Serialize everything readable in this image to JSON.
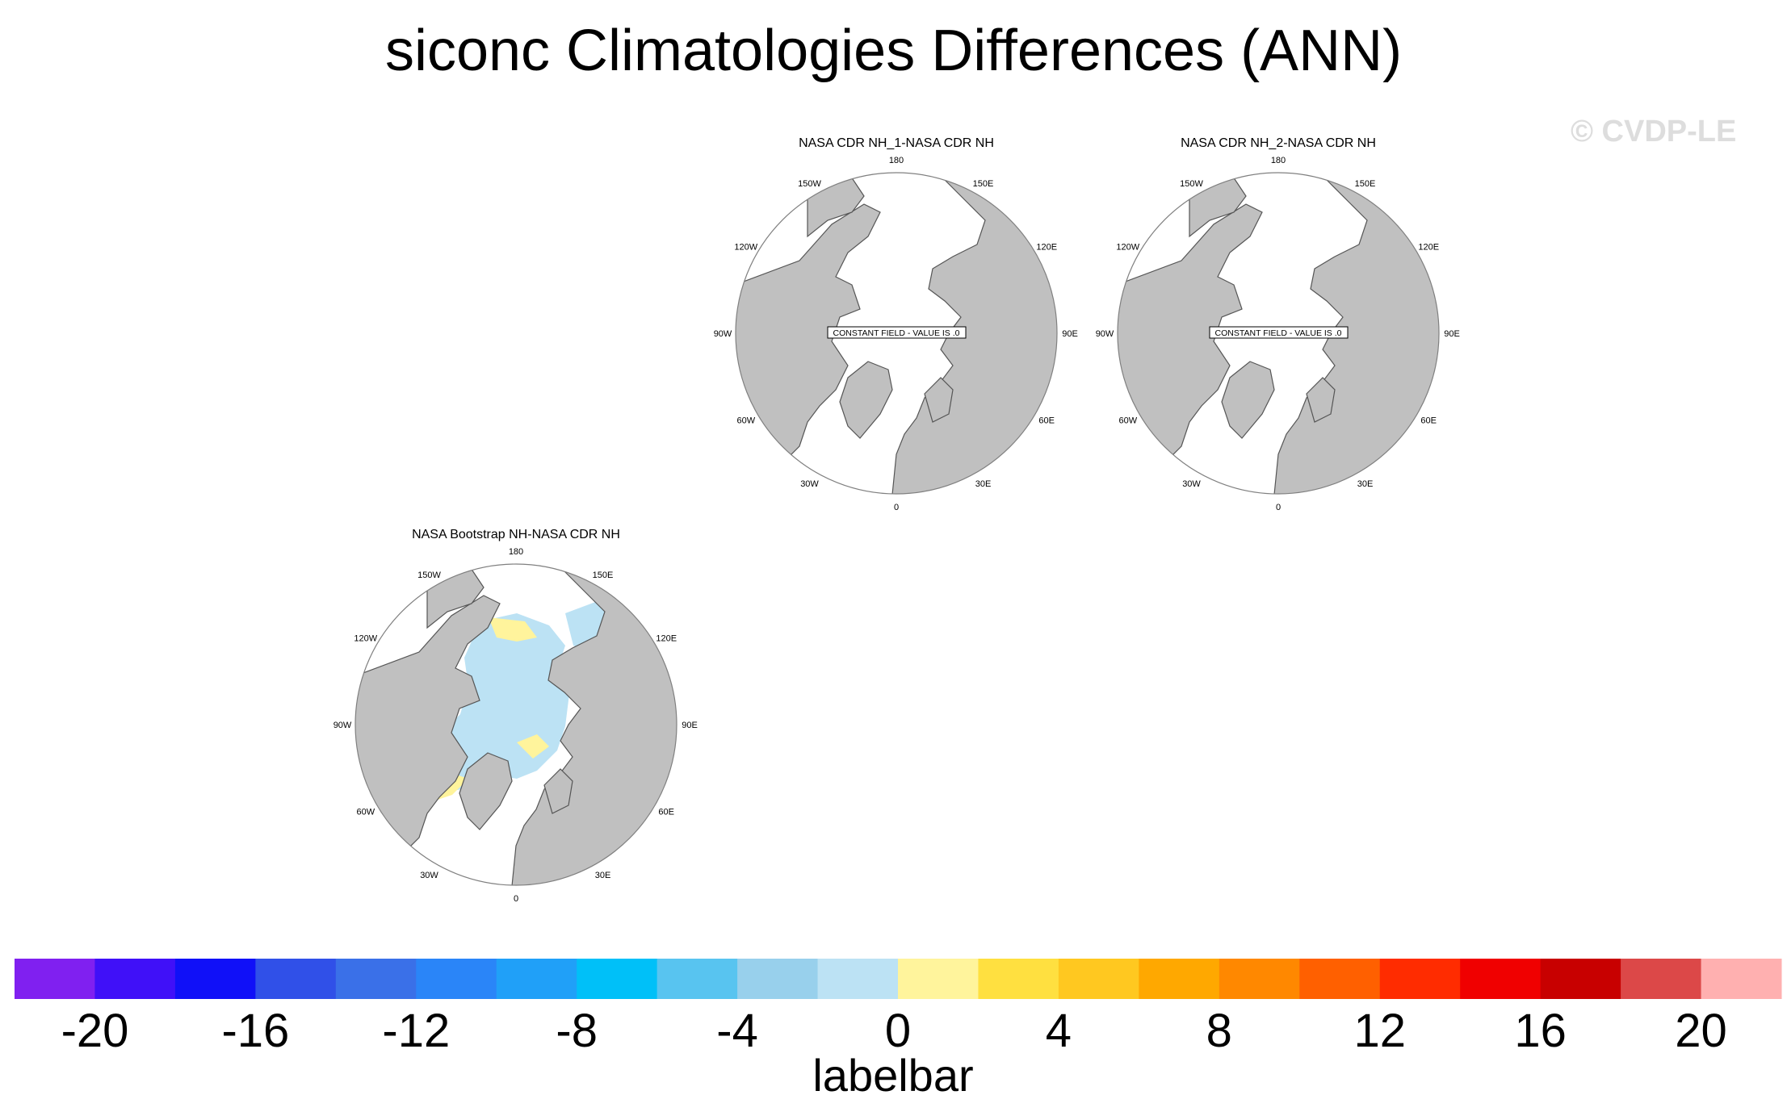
{
  "title": "siconc Climatologies Differences (ANN)",
  "watermark": "© CVDP-LE",
  "panels": [
    {
      "title": "NASA CDR NH_1-NASA CDR NH",
      "message": "CONSTANT FIELD - VALUE IS .0"
    },
    {
      "title": "NASA CDR NH_2-NASA CDR NH",
      "message": "CONSTANT FIELD - VALUE IS .0"
    },
    {
      "title": "NASA Bootstrap NH-NASA CDR NH",
      "message": ""
    }
  ],
  "longitude_labels": [
    "180",
    "150E",
    "120E",
    "90E",
    "60E",
    "30E",
    "0",
    "30W",
    "60W",
    "90W",
    "120W",
    "150W"
  ],
  "colorbar": {
    "title": "labelbar",
    "tick_labels": [
      "-20",
      "-16",
      "-12",
      "-8",
      "-4",
      "0",
      "4",
      "8",
      "12",
      "16",
      "20"
    ],
    "colors": [
      "#8020f0",
      "#4010f8",
      "#1010f8",
      "#3050e8",
      "#3a70e8",
      "#2a85f8",
      "#20a0f8",
      "#00c0f8",
      "#58c4f0",
      "#98d0ec",
      "#bce2f4",
      "#fff49c",
      "#ffe040",
      "#ffc820",
      "#ffa800",
      "#ff8800",
      "#ff6000",
      "#ff2c00",
      "#f00000",
      "#c80000",
      "#dc4848",
      "#ffb0b0"
    ]
  },
  "map_colors": {
    "land": "#c0c0c0",
    "ocean": "#ffffff",
    "positive": "#fff49c",
    "negative": "#bce2f4"
  }
}
